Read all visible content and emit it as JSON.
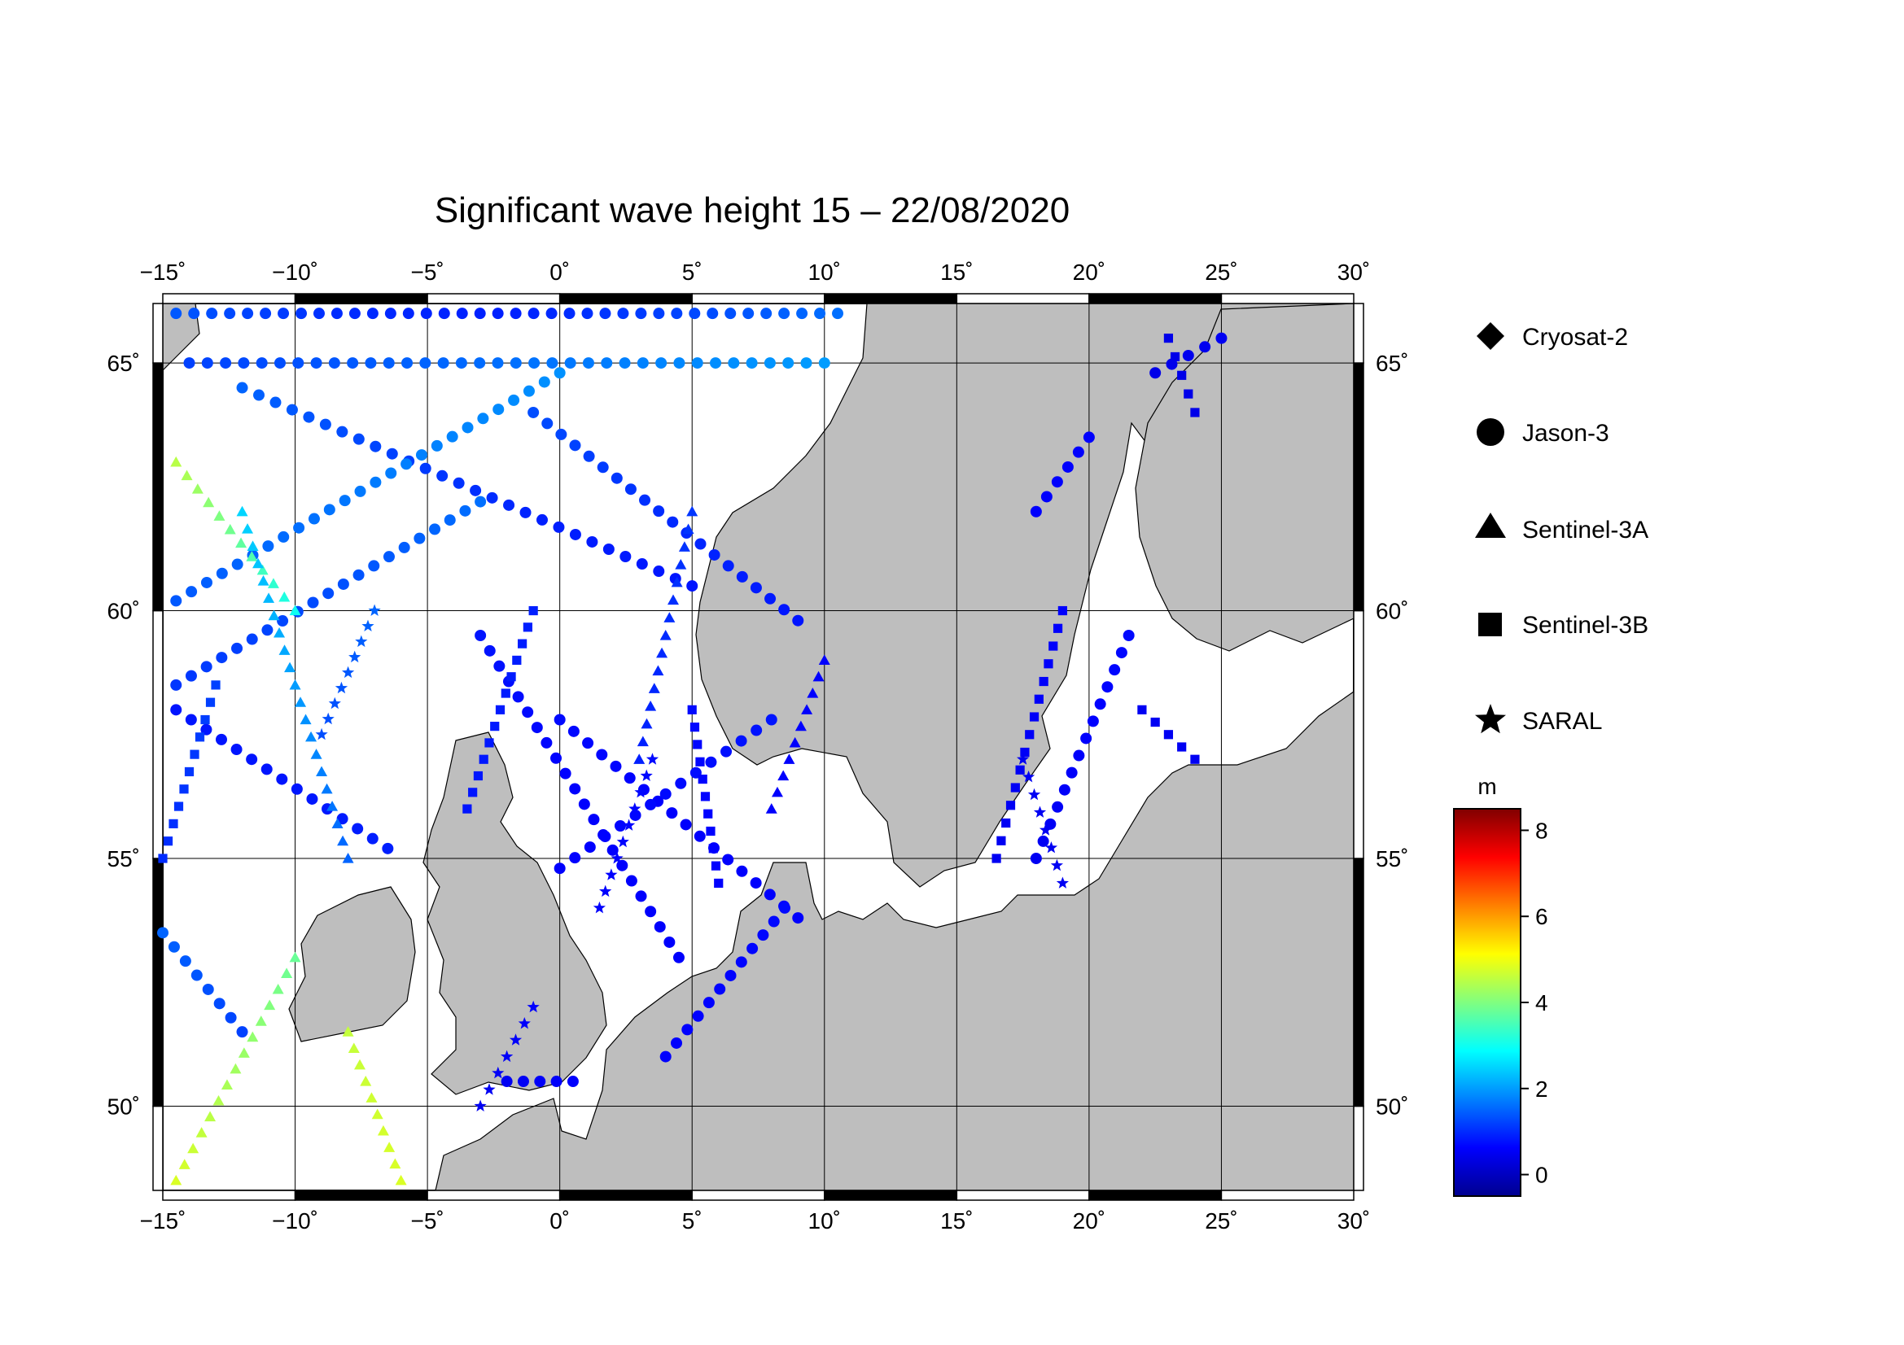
{
  "title": "Significant wave height 15 – 22/08/2020",
  "map": {
    "lon_range": [
      -15,
      30
    ],
    "lat_range": [
      48.3,
      66.2
    ],
    "lon_ticks": [
      -15,
      -10,
      -5,
      0,
      5,
      10,
      15,
      20,
      25,
      30
    ],
    "lat_ticks": [
      50,
      55,
      60,
      65
    ],
    "lon_tick_labels": [
      "−15˚",
      "−10˚",
      "−5˚",
      "0˚",
      "5˚",
      "10˚",
      "15˚",
      "20˚",
      "25˚",
      "30˚"
    ],
    "lat_tick_labels": [
      "50˚",
      "55˚",
      "60˚",
      "65˚"
    ],
    "grid": true,
    "land_color": "#bebebe",
    "sea_color": "#ffffff"
  },
  "legend": {
    "placement": "right",
    "items": [
      {
        "label": "Cryosat-2",
        "symbol": "diamond"
      },
      {
        "label": "Jason-3",
        "symbol": "circle"
      },
      {
        "label": "Sentinel-3A",
        "symbol": "triangle"
      },
      {
        "label": "Sentinel-3B",
        "symbol": "square"
      },
      {
        "label": "SARAL",
        "symbol": "star"
      }
    ]
  },
  "colorbar": {
    "unit": "m",
    "range": [
      -0.5,
      8.5
    ],
    "ticks": [
      0,
      2,
      4,
      6,
      8
    ],
    "tick_labels": [
      "0",
      "2",
      "4",
      "6",
      "8"
    ],
    "colormap": [
      "#00008f",
      "#0000ff",
      "#0080ff",
      "#00ffff",
      "#80ff80",
      "#ffff00",
      "#ff8000",
      "#ff0000",
      "#800000"
    ]
  },
  "chart_data": {
    "type": "scatter",
    "title": "Significant wave height 15 – 22/08/2020",
    "xlabel": "",
    "ylabel": "",
    "xlim": [
      -15,
      30
    ],
    "ylim": [
      48.3,
      66.2
    ],
    "color_unit": "m",
    "series": [
      {
        "name": "Jason-3",
        "symbol": "circle",
        "tracks": [
          {
            "from": [
              -14.5,
              66.0
            ],
            "to": [
              10.5,
              66.0
            ],
            "swh": [
              1.4,
              1.0,
              0.9,
              1.2,
              1.6
            ]
          },
          {
            "from": [
              -14.0,
              65.0
            ],
            "to": [
              10.0,
              65.0
            ],
            "swh": [
              1.2,
              1.4,
              1.6,
              1.8,
              2.0
            ]
          },
          {
            "from": [
              -12.0,
              64.5
            ],
            "to": [
              5.0,
              60.5
            ],
            "swh": [
              1.5,
              1.2,
              0.9,
              0.8
            ]
          },
          {
            "from": [
              -1.0,
              64.0
            ],
            "to": [
              9.0,
              59.8
            ],
            "swh": [
              1.3,
              1.0,
              0.8
            ]
          },
          {
            "from": [
              -14.5,
              60.2
            ],
            "to": [
              0.0,
              64.8
            ],
            "swh": [
              1.4,
              1.7,
              1.9
            ]
          },
          {
            "from": [
              -14.5,
              58.5
            ],
            "to": [
              -3.0,
              62.2
            ],
            "swh": [
              1.1,
              1.3,
              1.6
            ]
          },
          {
            "from": [
              -14.5,
              58.0
            ],
            "to": [
              -6.5,
              55.2
            ],
            "swh": [
              0.8,
              0.8,
              0.9
            ]
          },
          {
            "from": [
              -3.0,
              59.5
            ],
            "to": [
              4.5,
              53.0
            ],
            "swh": [
              0.8,
              0.6,
              0.6
            ]
          },
          {
            "from": [
              0.0,
              57.8
            ],
            "to": [
              9.0,
              53.8
            ],
            "swh": [
              0.7,
              0.6,
              0.6
            ]
          },
          {
            "from": [
              0.0,
              54.8
            ],
            "to": [
              8.0,
              57.8
            ],
            "swh": [
              0.6,
              0.7,
              0.8
            ]
          },
          {
            "from": [
              4.0,
              51.0
            ],
            "to": [
              8.5,
              54.0
            ],
            "swh": [
              0.6,
              0.7
            ]
          },
          {
            "from": [
              -12.0,
              51.5
            ],
            "to": [
              -15.0,
              53.5
            ],
            "swh": [
              1.2,
              1.5
            ]
          },
          {
            "from": [
              -2.0,
              50.5
            ],
            "to": [
              0.5,
              50.5
            ],
            "swh": [
              0.5,
              0.6
            ]
          },
          {
            "from": [
              18.0,
              55.0
            ],
            "to": [
              21.5,
              59.5
            ],
            "swh": [
              0.5,
              0.6,
              0.7
            ]
          },
          {
            "from": [
              18.0,
              62.0
            ],
            "to": [
              20.0,
              63.5
            ],
            "swh": [
              0.6,
              0.6
            ]
          },
          {
            "from": [
              22.5,
              64.8
            ],
            "to": [
              25.0,
              65.5
            ],
            "swh": [
              0.4,
              0.5
            ]
          }
        ]
      },
      {
        "name": "Sentinel-3A",
        "symbol": "triangle",
        "tracks": [
          {
            "from": [
              -14.5,
              63.0
            ],
            "to": [
              -10.0,
              60.0
            ],
            "swh": [
              4.5,
              3.8,
              3.0
            ]
          },
          {
            "from": [
              -14.5,
              48.5
            ],
            "to": [
              -10.0,
              53.0
            ],
            "swh": [
              4.8,
              4.3,
              3.8
            ]
          },
          {
            "from": [
              -8.0,
              51.5
            ],
            "to": [
              -6.0,
              48.5
            ],
            "swh": [
              4.6,
              4.8
            ]
          },
          {
            "from": [
              -12.0,
              62.0
            ],
            "to": [
              -8.0,
              55.0
            ],
            "swh": [
              2.5,
              2.0,
              1.5
            ]
          },
          {
            "from": [
              3.0,
              57.0
            ],
            "to": [
              5.0,
              62.0
            ],
            "swh": [
              0.9,
              1.1
            ]
          },
          {
            "from": [
              8.0,
              56.0
            ],
            "to": [
              10.0,
              59.0
            ],
            "swh": [
              0.6,
              0.6
            ]
          }
        ]
      },
      {
        "name": "Sentinel-3B",
        "symbol": "square",
        "tracks": [
          {
            "from": [
              -15.0,
              55.0
            ],
            "to": [
              -13.0,
              58.5
            ],
            "swh": [
              1.0,
              1.2
            ]
          },
          {
            "from": [
              -3.5,
              56.0
            ],
            "to": [
              -1.0,
              60.0
            ],
            "swh": [
              0.8,
              0.9
            ]
          },
          {
            "from": [
              6.0,
              54.5
            ],
            "to": [
              5.0,
              58.0
            ],
            "swh": [
              0.6,
              0.7
            ]
          },
          {
            "from": [
              16.5,
              55.0
            ],
            "to": [
              19.0,
              60.0
            ],
            "swh": [
              0.5,
              0.6
            ]
          },
          {
            "from": [
              22.0,
              58.0
            ],
            "to": [
              24.0,
              57.0
            ],
            "swh": [
              0.5,
              0.5
            ]
          },
          {
            "from": [
              23.0,
              65.5
            ],
            "to": [
              24.0,
              64.0
            ],
            "swh": [
              0.4,
              0.4
            ]
          }
        ]
      },
      {
        "name": "SARAL",
        "symbol": "star",
        "tracks": [
          {
            "from": [
              -9.0,
              57.5
            ],
            "to": [
              -7.0,
              60.0
            ],
            "swh": [
              1.3,
              1.5
            ]
          },
          {
            "from": [
              1.5,
              54.0
            ],
            "to": [
              3.5,
              57.0
            ],
            "swh": [
              0.6,
              0.7
            ]
          },
          {
            "from": [
              -3.0,
              50.0
            ],
            "to": [
              -1.0,
              52.0
            ],
            "swh": [
              0.5,
              0.6
            ]
          },
          {
            "from": [
              17.5,
              57.0
            ],
            "to": [
              19.0,
              54.5
            ],
            "swh": [
              0.5,
              0.5
            ]
          }
        ]
      }
    ]
  }
}
